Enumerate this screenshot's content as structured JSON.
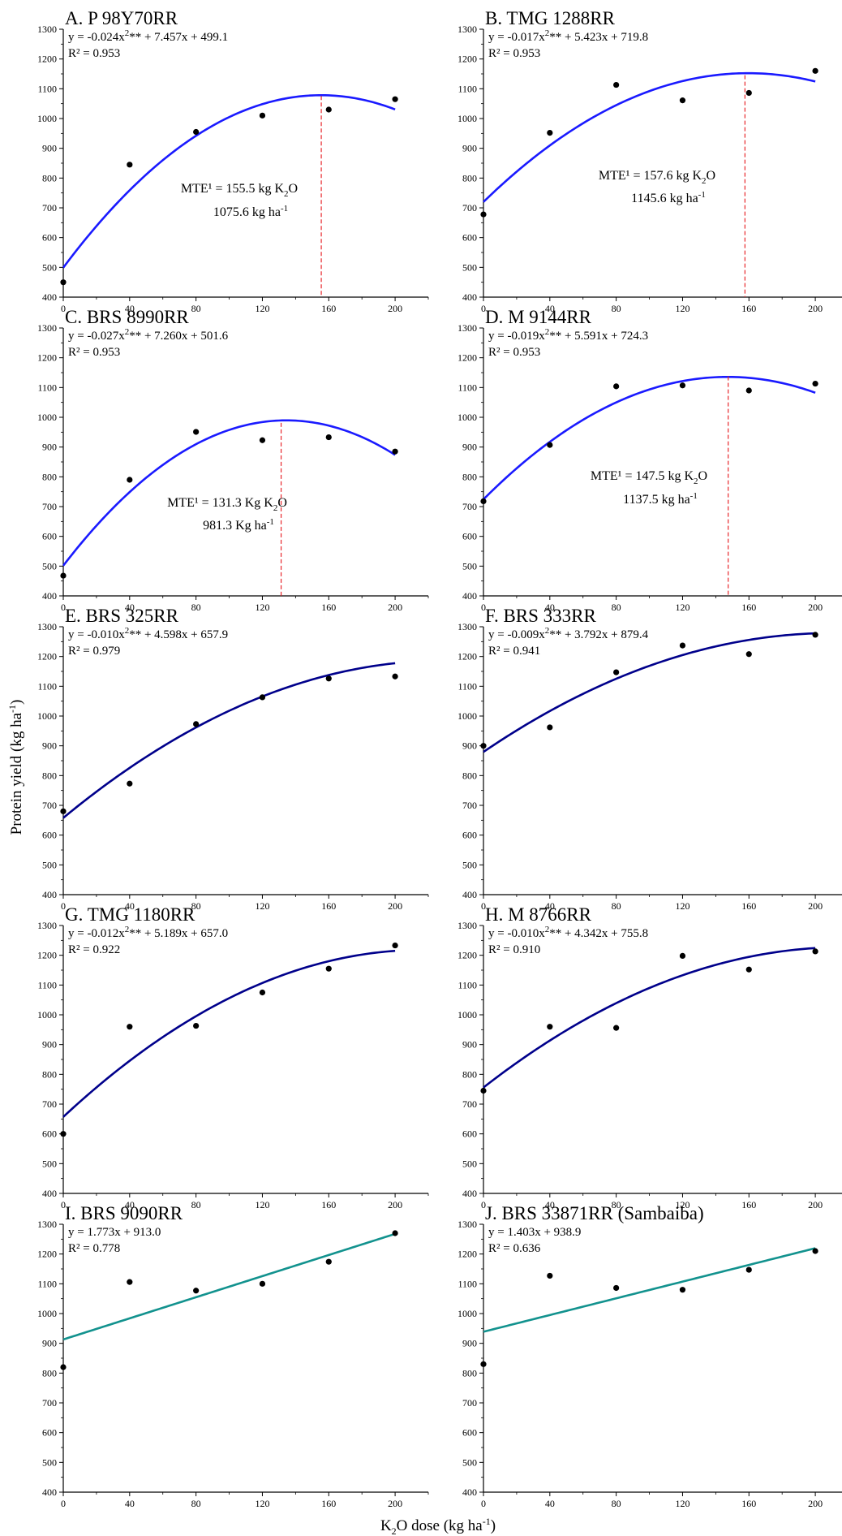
{
  "figure": {
    "ylabel": "Protein yield (kg ha",
    "ylabel_sup": "-1",
    "ylabel_close": ")",
    "xlabel_prefix": "K",
    "xlabel_sub": "2",
    "xlabel_rest": "O dose (kg ha",
    "xlabel_sup": "-1",
    "xlabel_close": ")"
  },
  "chart_data": [
    {
      "panel": "A",
      "title": "A. P 98Y70RR",
      "type": "scatter",
      "equation": {
        "a": "y = -0.024x",
        "sup": "2",
        "b": "** + 7.457x + 499.1"
      },
      "r2": "R² = 0.953",
      "fit": {
        "kind": "quadratic",
        "coef": [
          -0.024,
          7.457,
          499.1
        ],
        "color": "#1a1aff"
      },
      "points": [
        [
          0,
          450
        ],
        [
          40,
          845
        ],
        [
          80,
          955
        ],
        [
          120,
          1010
        ],
        [
          160,
          1030
        ],
        [
          200,
          1065
        ]
      ],
      "mte": {
        "x": 155.5,
        "y": 1075.6,
        "line1": "MTE¹ = 155.5 kg K",
        "line1_sub": "2",
        "line1_end": "O",
        "line2": "1075.6 kg ha",
        "line2_sup": "-1"
      },
      "xlim": [
        0,
        220
      ],
      "ylim": [
        400,
        1300
      ],
      "xticks": [
        0,
        40,
        80,
        120,
        160,
        200
      ],
      "yticks": [
        400,
        500,
        600,
        700,
        800,
        900,
        1000,
        1100,
        1200,
        1300
      ]
    },
    {
      "panel": "B",
      "title": "B. TMG 1288RR",
      "type": "scatter",
      "equation": {
        "a": "y = -0.017x",
        "sup": "2",
        "b": "** + 5.423x + 719.8"
      },
      "r2": "R² = 0.953",
      "fit": {
        "kind": "quadratic",
        "coef": [
          -0.017,
          5.423,
          719.8
        ],
        "color": "#1a1aff"
      },
      "points": [
        [
          0,
          678
        ],
        [
          40,
          952
        ],
        [
          80,
          1113
        ],
        [
          120,
          1061
        ],
        [
          160,
          1086
        ],
        [
          200,
          1160
        ]
      ],
      "mte": {
        "x": 157.6,
        "y": 1145.6,
        "line1": "MTE¹ = 157.6 kg K",
        "line1_sub": "2",
        "line1_end": "O",
        "line2": "1145.6 kg ha",
        "line2_sup": "-1"
      },
      "xlim": [
        0,
        220
      ],
      "ylim": [
        400,
        1300
      ],
      "xticks": [
        0,
        40,
        80,
        120,
        160,
        200
      ],
      "yticks": [
        400,
        500,
        600,
        700,
        800,
        900,
        1000,
        1100,
        1200,
        1300
      ]
    },
    {
      "panel": "C",
      "title": "C. BRS 8990RR",
      "type": "scatter",
      "equation": {
        "a": "y = -0.027x",
        "sup": "2",
        "b": "** + 7.260x + 501.6"
      },
      "r2": "R² = 0.953",
      "fit": {
        "kind": "quadratic",
        "coef": [
          -0.027,
          7.26,
          501.6
        ],
        "color": "#1a1aff"
      },
      "points": [
        [
          0,
          468
        ],
        [
          40,
          790
        ],
        [
          80,
          951
        ],
        [
          120,
          923
        ],
        [
          160,
          933
        ],
        [
          200,
          885
        ]
      ],
      "mte": {
        "x": 131.3,
        "y": 981.3,
        "line1": "MTE¹ = 131.3 Kg K",
        "line1_sub": "2",
        "line1_end": "O",
        "line2": "981.3 Kg ha",
        "line2_sup": "-1"
      },
      "xlim": [
        0,
        220
      ],
      "ylim": [
        400,
        1300
      ],
      "xticks": [
        0,
        40,
        80,
        120,
        160,
        200
      ],
      "yticks": [
        400,
        500,
        600,
        700,
        800,
        900,
        1000,
        1100,
        1200,
        1300
      ]
    },
    {
      "panel": "D",
      "title": "D. M 9144RR",
      "type": "scatter",
      "equation": {
        "a": "y = -0.019x",
        "sup": "2",
        "b": "** + 5.591x + 724.3"
      },
      "r2": "R² = 0.953",
      "fit": {
        "kind": "quadratic",
        "coef": [
          -0.019,
          5.591,
          724.3
        ],
        "color": "#1a1aff"
      },
      "points": [
        [
          0,
          718
        ],
        [
          40,
          907
        ],
        [
          80,
          1104
        ],
        [
          120,
          1107
        ],
        [
          160,
          1090
        ],
        [
          200,
          1113
        ]
      ],
      "mte": {
        "x": 147.5,
        "y": 1137.5,
        "line1": "MTE¹ = 147.5 kg K",
        "line1_sub": "2",
        "line1_end": "O",
        "line2": "1137.5 kg ha",
        "line2_sup": "-1"
      },
      "xlim": [
        0,
        220
      ],
      "ylim": [
        400,
        1300
      ],
      "xticks": [
        0,
        40,
        80,
        120,
        160,
        200
      ],
      "yticks": [
        400,
        500,
        600,
        700,
        800,
        900,
        1000,
        1100,
        1200,
        1300
      ]
    },
    {
      "panel": "E",
      "title": "E. BRS 325RR",
      "type": "scatter",
      "equation": {
        "a": "y = -0.010x",
        "sup": "2",
        "b": "** + 4.598x + 657.9"
      },
      "r2": "R² = 0.979",
      "fit": {
        "kind": "quadratic",
        "coef": [
          -0.01,
          4.598,
          657.9
        ],
        "color": "#00008b"
      },
      "points": [
        [
          0,
          680
        ],
        [
          40,
          773
        ],
        [
          80,
          973
        ],
        [
          120,
          1063
        ],
        [
          160,
          1126
        ],
        [
          200,
          1133
        ]
      ],
      "xlim": [
        0,
        220
      ],
      "ylim": [
        400,
        1300
      ],
      "xticks": [
        0,
        40,
        80,
        120,
        160,
        200
      ],
      "yticks": [
        400,
        500,
        600,
        700,
        800,
        900,
        1000,
        1100,
        1200,
        1300
      ]
    },
    {
      "panel": "F",
      "title": "F. BRS 333RR",
      "type": "scatter",
      "equation": {
        "a": "y = -0.009x",
        "sup": "2",
        "b": "** + 3.792x + 879.4"
      },
      "r2": "R² = 0.941",
      "fit": {
        "kind": "quadratic",
        "coef": [
          -0.009,
          3.792,
          879.4
        ],
        "color": "#00008b"
      },
      "points": [
        [
          0,
          900
        ],
        [
          40,
          962
        ],
        [
          80,
          1147
        ],
        [
          120,
          1237
        ],
        [
          160,
          1208
        ],
        [
          200,
          1273
        ]
      ],
      "xlim": [
        0,
        220
      ],
      "ylim": [
        400,
        1300
      ],
      "xticks": [
        0,
        40,
        80,
        120,
        160,
        200
      ],
      "yticks": [
        400,
        500,
        600,
        700,
        800,
        900,
        1000,
        1100,
        1200,
        1300
      ]
    },
    {
      "panel": "G",
      "title": "G. TMG 1180RR",
      "type": "scatter",
      "equation": {
        "a": "y = -0.012x",
        "sup": "2",
        "b": "** + 5.189x + 657.0"
      },
      "r2": "R² = 0.922",
      "fit": {
        "kind": "quadratic",
        "coef": [
          -0.012,
          5.189,
          657.0
        ],
        "color": "#00008b"
      },
      "points": [
        [
          0,
          600
        ],
        [
          40,
          960
        ],
        [
          80,
          963
        ],
        [
          120,
          1075
        ],
        [
          160,
          1155
        ],
        [
          200,
          1233
        ]
      ],
      "xlim": [
        0,
        220
      ],
      "ylim": [
        400,
        1300
      ],
      "xticks": [
        0,
        40,
        80,
        120,
        160,
        200
      ],
      "yticks": [
        400,
        500,
        600,
        700,
        800,
        900,
        1000,
        1100,
        1200,
        1300
      ]
    },
    {
      "panel": "H",
      "title": "H. M 8766RR",
      "type": "scatter",
      "equation": {
        "a": "y = -0.010x",
        "sup": "2",
        "b": "** + 4.342x + 755.8"
      },
      "r2": "R² = 0.910",
      "fit": {
        "kind": "quadratic",
        "coef": [
          -0.01,
          4.342,
          755.8
        ],
        "color": "#00008b"
      },
      "points": [
        [
          0,
          745
        ],
        [
          40,
          960
        ],
        [
          80,
          956
        ],
        [
          120,
          1198
        ],
        [
          160,
          1152
        ],
        [
          200,
          1213
        ]
      ],
      "xlim": [
        0,
        220
      ],
      "ylim": [
        400,
        1300
      ],
      "xticks": [
        0,
        40,
        80,
        120,
        160,
        200
      ],
      "yticks": [
        400,
        500,
        600,
        700,
        800,
        900,
        1000,
        1100,
        1200,
        1300
      ]
    },
    {
      "panel": "I",
      "title": "I. BRS 9090RR",
      "type": "scatter",
      "equation": {
        "a": "y = 1.773x + 913.0",
        "sup": "",
        "b": ""
      },
      "r2": "R² = 0.778",
      "fit": {
        "kind": "linear",
        "coef": [
          0,
          1.773,
          913.0
        ],
        "color": "#12928e"
      },
      "points": [
        [
          0,
          820
        ],
        [
          40,
          1106
        ],
        [
          80,
          1077
        ],
        [
          120,
          1100
        ],
        [
          160,
          1174
        ],
        [
          200,
          1270
        ]
      ],
      "xlim": [
        0,
        220
      ],
      "ylim": [
        400,
        1300
      ],
      "xticks": [
        0,
        40,
        80,
        120,
        160,
        200
      ],
      "yticks": [
        400,
        500,
        600,
        700,
        800,
        900,
        1000,
        1100,
        1200,
        1300
      ]
    },
    {
      "panel": "J",
      "title": "J. BRS 33871RR (Sambaiba)",
      "type": "scatter",
      "equation": {
        "a": "y = 1.403x + 938.9",
        "sup": "",
        "b": ""
      },
      "r2": "R² = 0.636",
      "fit": {
        "kind": "linear",
        "coef": [
          0,
          1.403,
          938.9
        ],
        "color": "#12928e"
      },
      "points": [
        [
          0,
          830
        ],
        [
          40,
          1127
        ],
        [
          80,
          1086
        ],
        [
          120,
          1080
        ],
        [
          160,
          1147
        ],
        [
          200,
          1210
        ]
      ],
      "xlim": [
        0,
        220
      ],
      "ylim": [
        400,
        1300
      ],
      "xticks": [
        0,
        40,
        80,
        120,
        160,
        200
      ],
      "yticks": [
        400,
        500,
        600,
        700,
        800,
        900,
        1000,
        1100,
        1200,
        1300
      ]
    }
  ]
}
